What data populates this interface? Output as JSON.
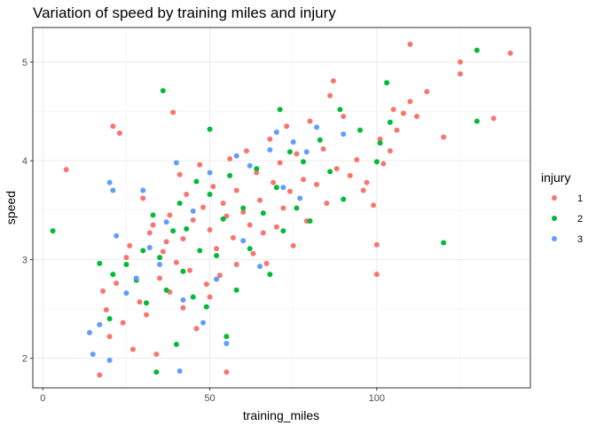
{
  "chart_data": {
    "type": "scatter",
    "title": "Variation of speed by training miles and injury",
    "xlabel": "training_miles",
    "ylabel": "speed",
    "xlim": [
      -3,
      146
    ],
    "ylim": [
      1.7,
      5.35
    ],
    "x_ticks": [
      0,
      50,
      100
    ],
    "x_tick_labels": [
      "0",
      "50",
      "100"
    ],
    "y_ticks": [
      2,
      3,
      4,
      5
    ],
    "y_tick_labels": [
      "2",
      "3",
      "4",
      "5"
    ],
    "grid": true,
    "legend": {
      "title": "injury",
      "position": "right"
    },
    "series": [
      {
        "name": "1",
        "color": "#F8766D",
        "points": [
          [
            7,
            3.91
          ],
          [
            17,
            1.83
          ],
          [
            18,
            2.68
          ],
          [
            19,
            2.49
          ],
          [
            20,
            2.22
          ],
          [
            21,
            4.35
          ],
          [
            22,
            2.76
          ],
          [
            23,
            4.28
          ],
          [
            24,
            2.36
          ],
          [
            25,
            3.02
          ],
          [
            26,
            3.14
          ],
          [
            27,
            2.09
          ],
          [
            29,
            2.57
          ],
          [
            30,
            3.62
          ],
          [
            31,
            2.44
          ],
          [
            32,
            3.27
          ],
          [
            33,
            3.35
          ],
          [
            34,
            2.04
          ],
          [
            35,
            2.81
          ],
          [
            36,
            3.08
          ],
          [
            37,
            3.18
          ],
          [
            38,
            2.67
          ],
          [
            38,
            3.45
          ],
          [
            39,
            4.49
          ],
          [
            40,
            2.97
          ],
          [
            41,
            3.86
          ],
          [
            42,
            2.51
          ],
          [
            42,
            3.21
          ],
          [
            43,
            3.66
          ],
          [
            44,
            2.89
          ],
          [
            45,
            3.4
          ],
          [
            46,
            2.3
          ],
          [
            47,
            3.96
          ],
          [
            48,
            3.53
          ],
          [
            49,
            2.75
          ],
          [
            50,
            3.3
          ],
          [
            50,
            2.62
          ],
          [
            51,
            3.74
          ],
          [
            52,
            3.11
          ],
          [
            53,
            2.84
          ],
          [
            54,
            3.57
          ],
          [
            55,
            1.86
          ],
          [
            55,
            3.44
          ],
          [
            56,
            4.02
          ],
          [
            57,
            3.22
          ],
          [
            58,
            2.95
          ],
          [
            58,
            3.7
          ],
          [
            60,
            3.48
          ],
          [
            61,
            4.1
          ],
          [
            62,
            3.35
          ],
          [
            63,
            3.06
          ],
          [
            64,
            3.88
          ],
          [
            65,
            3.6
          ],
          [
            66,
            3.27
          ],
          [
            67,
            2.96
          ],
          [
            68,
            4.22
          ],
          [
            69,
            3.78
          ],
          [
            70,
            3.33
          ],
          [
            71,
            3.98
          ],
          [
            72,
            3.52
          ],
          [
            73,
            4.35
          ],
          [
            74,
            3.69
          ],
          [
            75,
            3.14
          ],
          [
            76,
            4.07
          ],
          [
            78,
            3.81
          ],
          [
            79,
            3.39
          ],
          [
            80,
            4.4
          ],
          [
            82,
            3.76
          ],
          [
            84,
            4.12
          ],
          [
            85,
            3.57
          ],
          [
            86,
            4.66
          ],
          [
            87,
            4.81
          ],
          [
            88,
            3.92
          ],
          [
            90,
            4.45
          ],
          [
            92,
            3.85
          ],
          [
            94,
            4.01
          ],
          [
            96,
            3.7
          ],
          [
            97,
            3.78
          ],
          [
            99,
            3.55
          ],
          [
            100,
            2.85
          ],
          [
            100,
            3.15
          ],
          [
            101,
            4.22
          ],
          [
            102,
            3.97
          ],
          [
            104,
            4.1
          ],
          [
            105,
            4.52
          ],
          [
            106,
            4.31
          ],
          [
            108,
            4.48
          ],
          [
            110,
            5.18
          ],
          [
            110,
            4.6
          ],
          [
            112,
            4.45
          ],
          [
            115,
            4.7
          ],
          [
            120,
            4.24
          ],
          [
            125,
            4.88
          ],
          [
            125,
            5.0
          ],
          [
            135,
            4.43
          ],
          [
            140,
            5.09
          ]
        ]
      },
      {
        "name": "2",
        "color": "#00BA38",
        "points": [
          [
            3,
            3.29
          ],
          [
            17,
            2.96
          ],
          [
            20,
            2.4
          ],
          [
            21,
            2.85
          ],
          [
            25,
            2.95
          ],
          [
            28,
            2.79
          ],
          [
            30,
            3.09
          ],
          [
            31,
            2.56
          ],
          [
            33,
            3.45
          ],
          [
            34,
            1.86
          ],
          [
            35,
            3.02
          ],
          [
            36,
            4.71
          ],
          [
            37,
            2.69
          ],
          [
            39,
            3.29
          ],
          [
            40,
            2.14
          ],
          [
            41,
            3.57
          ],
          [
            42,
            2.88
          ],
          [
            43,
            3.31
          ],
          [
            45,
            2.62
          ],
          [
            46,
            3.79
          ],
          [
            47,
            3.09
          ],
          [
            49,
            2.52
          ],
          [
            50,
            3.66
          ],
          [
            50,
            4.32
          ],
          [
            52,
            3.04
          ],
          [
            54,
            3.41
          ],
          [
            55,
            2.22
          ],
          [
            56,
            3.85
          ],
          [
            58,
            2.69
          ],
          [
            60,
            3.52
          ],
          [
            62,
            3.11
          ],
          [
            64,
            3.92
          ],
          [
            66,
            3.47
          ],
          [
            68,
            2.85
          ],
          [
            70,
            3.73
          ],
          [
            71,
            4.52
          ],
          [
            72,
            3.29
          ],
          [
            74,
            4.09
          ],
          [
            76,
            3.52
          ],
          [
            78,
            3.99
          ],
          [
            80,
            3.39
          ],
          [
            83,
            4.21
          ],
          [
            86,
            3.89
          ],
          [
            89,
            4.52
          ],
          [
            90,
            3.61
          ],
          [
            95,
            4.31
          ],
          [
            100,
            3.99
          ],
          [
            101,
            4.18
          ],
          [
            103,
            4.79
          ],
          [
            104,
            4.39
          ],
          [
            120,
            3.17
          ],
          [
            130,
            4.4
          ],
          [
            130,
            5.12
          ]
        ]
      },
      {
        "name": "3",
        "color": "#619CFF",
        "points": [
          [
            14,
            2.26
          ],
          [
            15,
            2.04
          ],
          [
            17,
            2.34
          ],
          [
            20,
            3.78
          ],
          [
            20,
            1.98
          ],
          [
            21,
            3.7
          ],
          [
            22,
            3.24
          ],
          [
            25,
            2.66
          ],
          [
            28,
            2.81
          ],
          [
            30,
            3.7
          ],
          [
            32,
            3.12
          ],
          [
            35,
            2.95
          ],
          [
            37,
            3.38
          ],
          [
            40,
            3.98
          ],
          [
            41,
            1.87
          ],
          [
            42,
            2.59
          ],
          [
            45,
            3.49
          ],
          [
            48,
            2.36
          ],
          [
            50,
            3.88
          ],
          [
            52,
            2.8
          ],
          [
            55,
            2.15
          ],
          [
            58,
            4.05
          ],
          [
            60,
            3.19
          ],
          [
            62,
            3.95
          ],
          [
            65,
            2.93
          ],
          [
            68,
            4.11
          ],
          [
            70,
            4.29
          ],
          [
            72,
            3.73
          ],
          [
            75,
            4.19
          ],
          [
            77,
            3.62
          ],
          [
            79,
            4.09
          ],
          [
            82,
            4.34
          ],
          [
            90,
            4.27
          ]
        ]
      }
    ]
  }
}
